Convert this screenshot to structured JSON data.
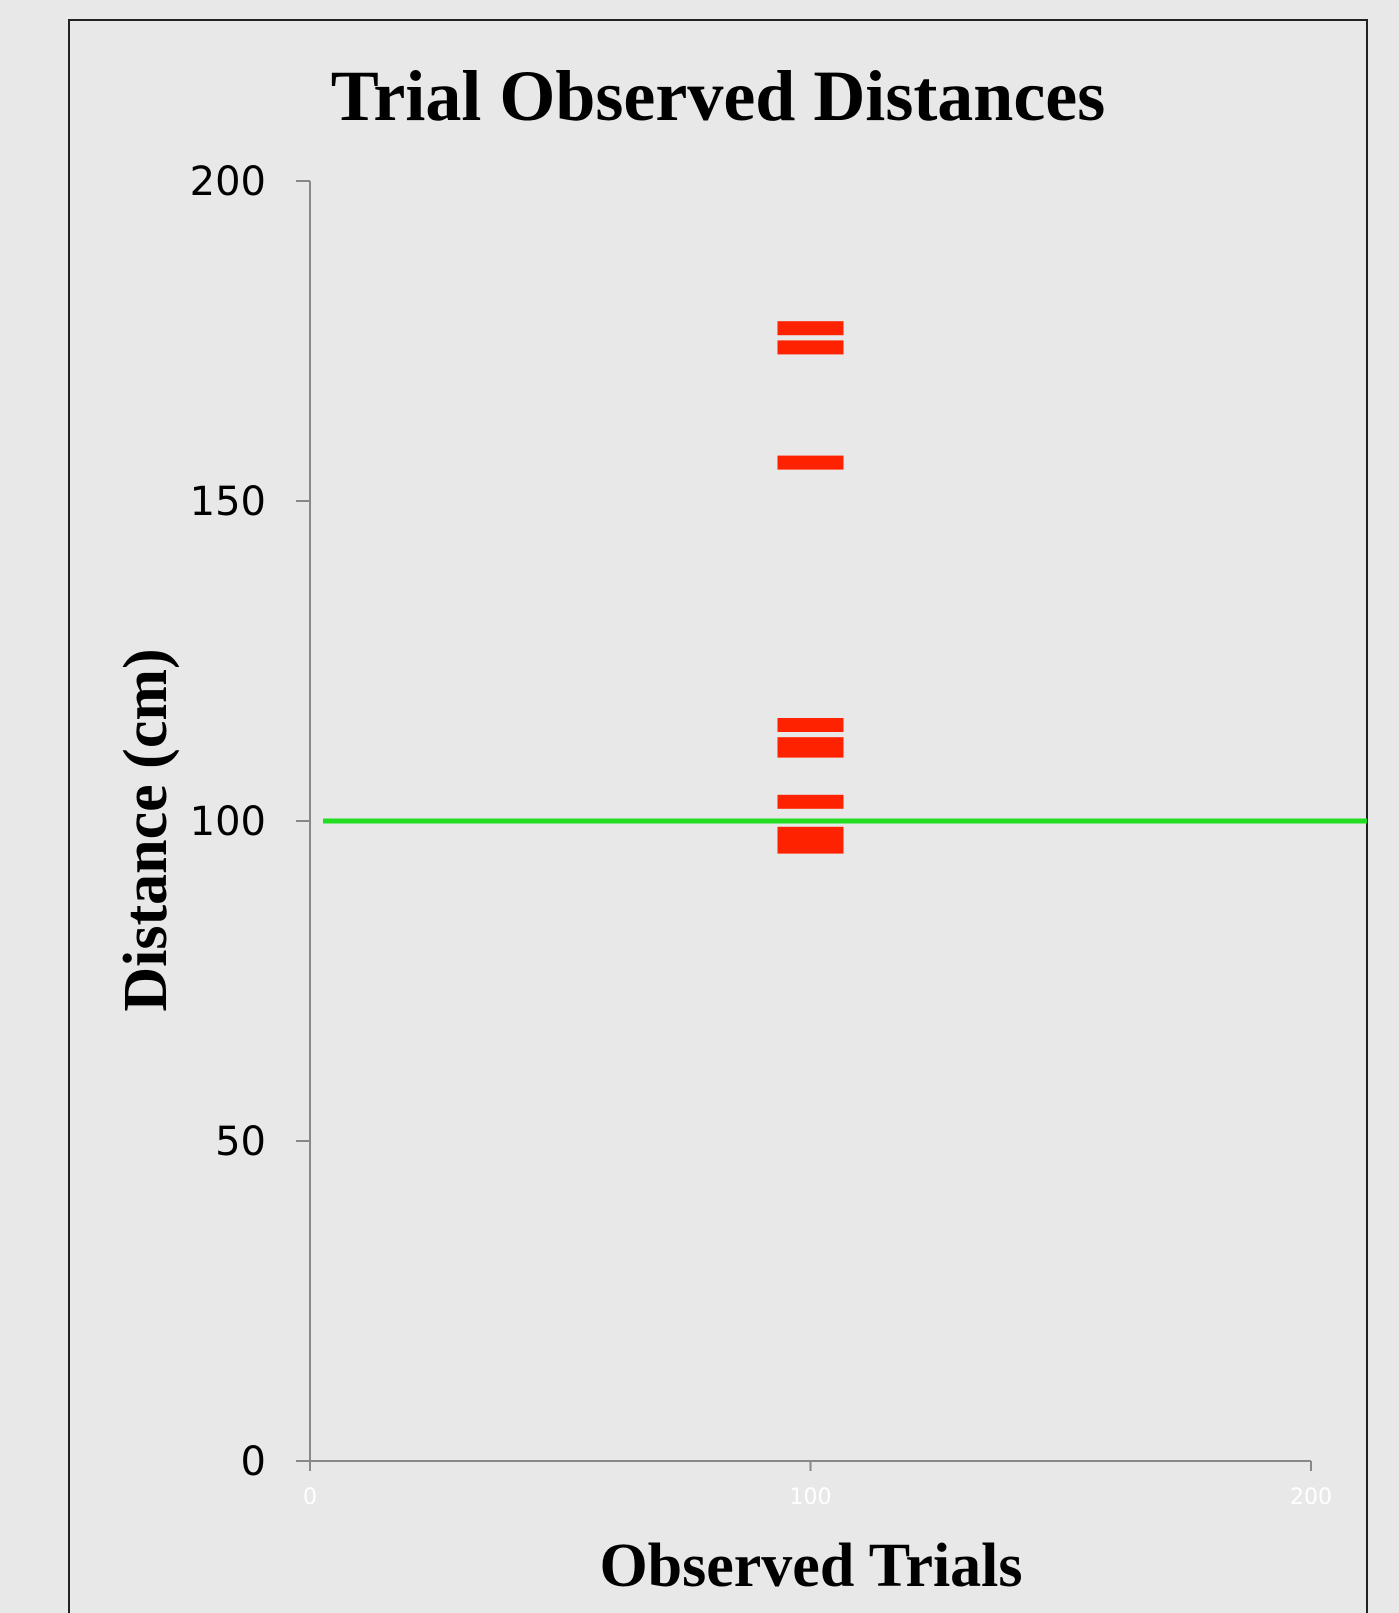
{
  "chart_data": {
    "type": "scatter",
    "title": "Trial Observed Distances",
    "xlabel": "Observed Trials",
    "ylabel": "Distance (cm)",
    "xlim": [
      0,
      200
    ],
    "ylim": [
      0,
      200
    ],
    "xticks": [
      "0",
      "100",
      "200"
    ],
    "yticks": [
      "0",
      "50",
      "100",
      "150",
      "200"
    ],
    "grid": false,
    "series": [
      {
        "marker": "dash",
        "color": "#ff2200",
        "points": [
          {
            "x": 100,
            "y": 177
          },
          {
            "x": 100,
            "y": 174
          },
          {
            "x": 100,
            "y": 156
          },
          {
            "x": 100,
            "y": 115
          },
          {
            "x": 100,
            "y": 112
          },
          {
            "x": 100,
            "y": 111
          },
          {
            "x": 100,
            "y": 103
          },
          {
            "x": 100,
            "y": 98
          },
          {
            "x": 100,
            "y": 96
          }
        ]
      }
    ],
    "reference_line": {
      "y": 100,
      "color": "#22dd22"
    },
    "colors": {
      "background": "#e8e8e8",
      "frame": "#222222",
      "axis": "#888888"
    }
  }
}
